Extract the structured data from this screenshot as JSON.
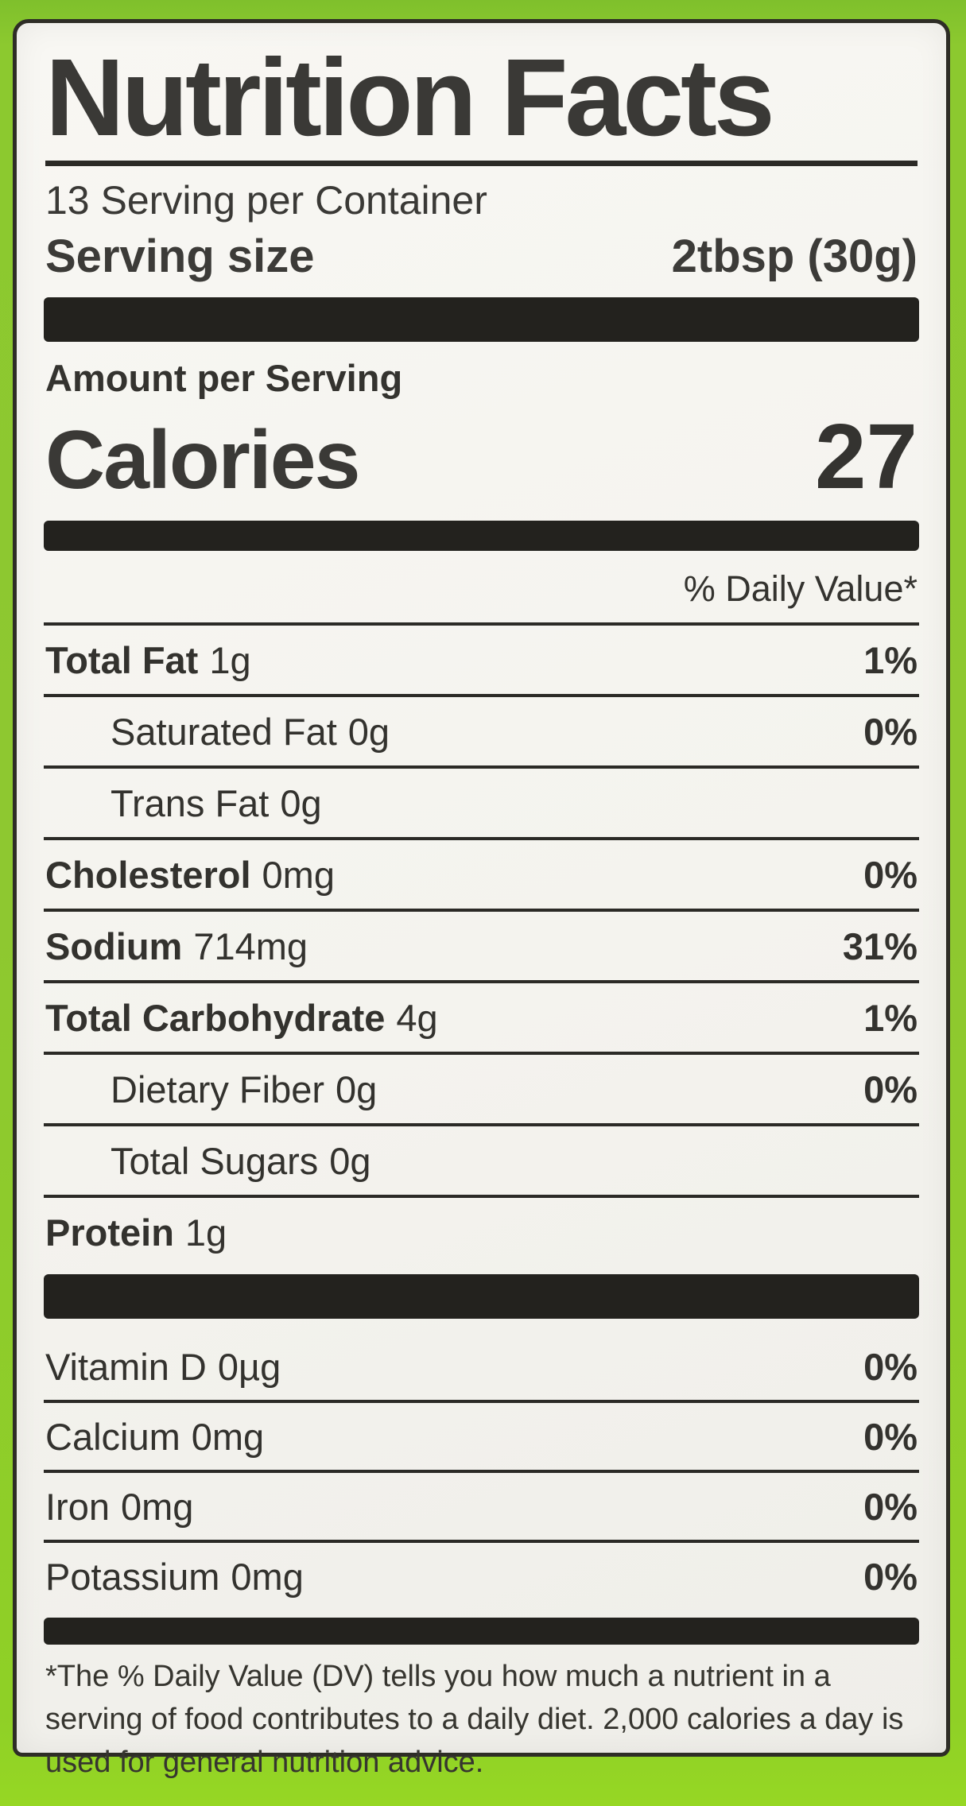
{
  "label": {
    "title": "Nutrition Facts",
    "servings_per_container": "13 Serving per Container",
    "serving_size_label": "Serving size",
    "serving_size_value": "2tbsp (30g)",
    "amount_per_serving": "Amount per Serving",
    "calories_label": "Calories",
    "calories_value": "27",
    "daily_value_header": "% Daily Value*",
    "rows": [
      {
        "name": "Total Fat",
        "amount": "1g",
        "dv": "1%"
      },
      {
        "name": "Saturated Fat",
        "amount": "0g",
        "dv": "0%"
      },
      {
        "name": "Trans Fat",
        "amount": "0g",
        "dv": ""
      },
      {
        "name": "Cholesterol",
        "amount": "0mg",
        "dv": "0%"
      },
      {
        "name": "Sodium",
        "amount": "714mg",
        "dv": "31%"
      },
      {
        "name": "Total Carbohydrate",
        "amount": "4g",
        "dv": "1%"
      },
      {
        "name": "Dietary Fiber",
        "amount": "0g",
        "dv": "0%"
      },
      {
        "name": "Total Sugars",
        "amount": "0g",
        "dv": ""
      },
      {
        "name": "Protein",
        "amount": "1g",
        "dv": ""
      }
    ],
    "vitamin_rows": [
      {
        "name": "Vitamin D",
        "amount": "0µg",
        "dv": "0%"
      },
      {
        "name": "Calcium",
        "amount": "0mg",
        "dv": "0%"
      },
      {
        "name": "Iron",
        "amount": "0mg",
        "dv": "0%"
      },
      {
        "name": "Potassium",
        "amount": "0mg",
        "dv": "0%"
      }
    ],
    "footnote": "*The % Daily Value (DV) tells you how much a nutrient in a serving of food contributes to a daily diet. 2,000 calories a day is used for general nutrition advice."
  },
  "colors": {
    "package_green": "#8bc92e",
    "label_background": "#f5f4ef",
    "text": "#33322e",
    "divider": "#23221e"
  }
}
